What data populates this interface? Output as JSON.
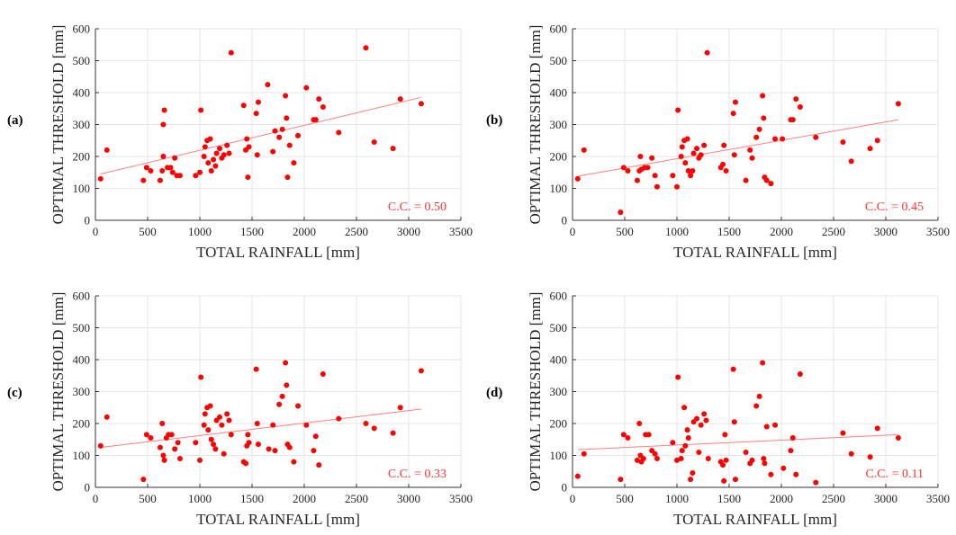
{
  "colors": {
    "marker": "#ff0000",
    "fit_line": "#ff8080",
    "annotation": "#ff3333",
    "grid": "#e6e6e6",
    "axis": "#333333",
    "text": "#262626"
  },
  "chart_data": [
    {
      "type": "scatter",
      "panel_label": "(a)",
      "xlabel": "TOTAL RAINFALL [mm]",
      "ylabel": "OPTIMAL THRESHOLD [mm]",
      "xlim": [
        0,
        3500
      ],
      "ylim": [
        0,
        600
      ],
      "xticks": [
        0,
        500,
        1000,
        1500,
        2000,
        2500,
        3000,
        3500
      ],
      "yticks": [
        0,
        100,
        200,
        300,
        400,
        500,
        600
      ],
      "grid": true,
      "annotation": "C.C. = 0.50",
      "trend_line": {
        "x": [
          50,
          3120
        ],
        "y": [
          145,
          385
        ]
      },
      "points": [
        [
          50,
          130
        ],
        [
          110,
          220
        ],
        [
          460,
          125
        ],
        [
          490,
          165
        ],
        [
          530,
          155
        ],
        [
          620,
          125
        ],
        [
          640,
          155
        ],
        [
          650,
          300
        ],
        [
          650,
          200
        ],
        [
          660,
          345
        ],
        [
          690,
          165
        ],
        [
          720,
          165
        ],
        [
          740,
          150
        ],
        [
          760,
          195
        ],
        [
          780,
          140
        ],
        [
          810,
          140
        ],
        [
          960,
          140
        ],
        [
          1000,
          150
        ],
        [
          1010,
          345
        ],
        [
          1040,
          200
        ],
        [
          1050,
          230
        ],
        [
          1070,
          250
        ],
        [
          1080,
          180
        ],
        [
          1100,
          255
        ],
        [
          1110,
          155
        ],
        [
          1130,
          190
        ],
        [
          1150,
          170
        ],
        [
          1160,
          210
        ],
        [
          1190,
          225
        ],
        [
          1210,
          195
        ],
        [
          1230,
          205
        ],
        [
          1260,
          235
        ],
        [
          1280,
          210
        ],
        [
          1300,
          525
        ],
        [
          1420,
          360
        ],
        [
          1440,
          220
        ],
        [
          1450,
          255
        ],
        [
          1460,
          135
        ],
        [
          1470,
          230
        ],
        [
          1540,
          335
        ],
        [
          1550,
          205
        ],
        [
          1560,
          370
        ],
        [
          1650,
          425
        ],
        [
          1700,
          215
        ],
        [
          1720,
          280
        ],
        [
          1760,
          260
        ],
        [
          1790,
          285
        ],
        [
          1820,
          390
        ],
        [
          1830,
          320
        ],
        [
          1840,
          135
        ],
        [
          1860,
          235
        ],
        [
          1900,
          180
        ],
        [
          1940,
          265
        ],
        [
          2020,
          415
        ],
        [
          2090,
          315
        ],
        [
          2110,
          315
        ],
        [
          2140,
          380
        ],
        [
          2180,
          355
        ],
        [
          2330,
          275
        ],
        [
          2590,
          540
        ],
        [
          2670,
          245
        ],
        [
          2850,
          225
        ],
        [
          2920,
          380
        ],
        [
          3120,
          365
        ]
      ]
    },
    {
      "type": "scatter",
      "panel_label": "(b)",
      "xlabel": "TOTAL RAINFALL [mm]",
      "ylabel": "OPTIMAL THRESHOLD [mm]",
      "xlim": [
        0,
        3500
      ],
      "ylim": [
        0,
        600
      ],
      "xticks": [
        0,
        500,
        1000,
        1500,
        2000,
        2500,
        3000,
        3500
      ],
      "yticks": [
        0,
        100,
        200,
        300,
        400,
        500,
        600
      ],
      "grid": true,
      "annotation": "C.C. = 0.45",
      "trend_line": {
        "x": [
          50,
          3120
        ],
        "y": [
          138,
          315
        ]
      },
      "points": [
        [
          50,
          130
        ],
        [
          110,
          220
        ],
        [
          460,
          25
        ],
        [
          490,
          165
        ],
        [
          530,
          155
        ],
        [
          620,
          125
        ],
        [
          640,
          155
        ],
        [
          650,
          200
        ],
        [
          660,
          160
        ],
        [
          690,
          165
        ],
        [
          720,
          165
        ],
        [
          760,
          195
        ],
        [
          790,
          140
        ],
        [
          810,
          105
        ],
        [
          960,
          140
        ],
        [
          1000,
          105
        ],
        [
          1010,
          345
        ],
        [
          1040,
          200
        ],
        [
          1050,
          230
        ],
        [
          1070,
          250
        ],
        [
          1080,
          180
        ],
        [
          1100,
          255
        ],
        [
          1110,
          155
        ],
        [
          1130,
          140
        ],
        [
          1150,
          155
        ],
        [
          1160,
          210
        ],
        [
          1190,
          225
        ],
        [
          1210,
          195
        ],
        [
          1230,
          205
        ],
        [
          1260,
          235
        ],
        [
          1290,
          525
        ],
        [
          1420,
          165
        ],
        [
          1440,
          175
        ],
        [
          1450,
          235
        ],
        [
          1470,
          155
        ],
        [
          1540,
          335
        ],
        [
          1550,
          205
        ],
        [
          1560,
          370
        ],
        [
          1660,
          125
        ],
        [
          1700,
          220
        ],
        [
          1720,
          195
        ],
        [
          1760,
          260
        ],
        [
          1790,
          285
        ],
        [
          1820,
          390
        ],
        [
          1830,
          320
        ],
        [
          1840,
          135
        ],
        [
          1860,
          125
        ],
        [
          1900,
          115
        ],
        [
          1940,
          255
        ],
        [
          2010,
          255
        ],
        [
          2090,
          315
        ],
        [
          2110,
          315
        ],
        [
          2140,
          380
        ],
        [
          2180,
          355
        ],
        [
          2330,
          260
        ],
        [
          2590,
          245
        ],
        [
          2670,
          185
        ],
        [
          2850,
          225
        ],
        [
          2920,
          250
        ],
        [
          3120,
          365
        ]
      ]
    },
    {
      "type": "scatter",
      "panel_label": "(c)",
      "xlabel": "TOTAL RAINFALL [mm]",
      "ylabel": "OPTIMAL THRESHOLD [mm]",
      "xlim": [
        0,
        3500
      ],
      "ylim": [
        0,
        600
      ],
      "xticks": [
        0,
        500,
        1000,
        1500,
        2000,
        2500,
        3000,
        3500
      ],
      "yticks": [
        0,
        100,
        200,
        300,
        400,
        500,
        600
      ],
      "grid": true,
      "annotation": "C.C. = 0.33",
      "trend_line": {
        "x": [
          50,
          3120
        ],
        "y": [
          125,
          245
        ]
      },
      "points": [
        [
          50,
          130
        ],
        [
          110,
          220
        ],
        [
          460,
          25
        ],
        [
          490,
          165
        ],
        [
          530,
          155
        ],
        [
          620,
          125
        ],
        [
          640,
          200
        ],
        [
          650,
          100
        ],
        [
          660,
          85
        ],
        [
          680,
          155
        ],
        [
          700,
          165
        ],
        [
          730,
          165
        ],
        [
          760,
          120
        ],
        [
          790,
          140
        ],
        [
          810,
          90
        ],
        [
          960,
          140
        ],
        [
          1000,
          85
        ],
        [
          1010,
          345
        ],
        [
          1040,
          195
        ],
        [
          1050,
          230
        ],
        [
          1070,
          250
        ],
        [
          1080,
          180
        ],
        [
          1100,
          255
        ],
        [
          1110,
          150
        ],
        [
          1130,
          135
        ],
        [
          1150,
          120
        ],
        [
          1160,
          210
        ],
        [
          1190,
          220
        ],
        [
          1210,
          195
        ],
        [
          1230,
          105
        ],
        [
          1260,
          230
        ],
        [
          1280,
          210
        ],
        [
          1300,
          165
        ],
        [
          1420,
          80
        ],
        [
          1440,
          75
        ],
        [
          1450,
          130
        ],
        [
          1460,
          165
        ],
        [
          1470,
          140
        ],
        [
          1540,
          370
        ],
        [
          1550,
          200
        ],
        [
          1560,
          135
        ],
        [
          1660,
          120
        ],
        [
          1700,
          195
        ],
        [
          1720,
          115
        ],
        [
          1760,
          260
        ],
        [
          1790,
          285
        ],
        [
          1820,
          390
        ],
        [
          1830,
          320
        ],
        [
          1840,
          135
        ],
        [
          1860,
          125
        ],
        [
          1900,
          80
        ],
        [
          1940,
          255
        ],
        [
          2020,
          195
        ],
        [
          2090,
          115
        ],
        [
          2110,
          160
        ],
        [
          2140,
          70
        ],
        [
          2180,
          355
        ],
        [
          2330,
          215
        ],
        [
          2590,
          200
        ],
        [
          2670,
          185
        ],
        [
          2850,
          170
        ],
        [
          2920,
          250
        ],
        [
          3120,
          365
        ]
      ]
    },
    {
      "type": "scatter",
      "panel_label": "(d)",
      "xlabel": "TOTAL RAINFALL [mm]",
      "ylabel": "OPTIMAL THRESHOLD [mm]",
      "xlim": [
        0,
        3500
      ],
      "ylim": [
        0,
        600
      ],
      "xticks": [
        0,
        500,
        1000,
        1500,
        2000,
        2500,
        3000,
        3500
      ],
      "yticks": [
        0,
        100,
        200,
        300,
        400,
        500,
        600
      ],
      "grid": true,
      "annotation": "C.C. = 0.11",
      "trend_line": {
        "x": [
          50,
          3120
        ],
        "y": [
          118,
          165
        ]
      },
      "points": [
        [
          50,
          35
        ],
        [
          110,
          105
        ],
        [
          460,
          25
        ],
        [
          490,
          165
        ],
        [
          530,
          155
        ],
        [
          620,
          85
        ],
        [
          640,
          200
        ],
        [
          650,
          100
        ],
        [
          660,
          80
        ],
        [
          680,
          90
        ],
        [
          700,
          165
        ],
        [
          730,
          165
        ],
        [
          760,
          115
        ],
        [
          790,
          105
        ],
        [
          810,
          90
        ],
        [
          960,
          140
        ],
        [
          1000,
          85
        ],
        [
          1010,
          345
        ],
        [
          1040,
          90
        ],
        [
          1050,
          115
        ],
        [
          1070,
          250
        ],
        [
          1080,
          130
        ],
        [
          1100,
          180
        ],
        [
          1110,
          155
        ],
        [
          1130,
          25
        ],
        [
          1150,
          45
        ],
        [
          1160,
          205
        ],
        [
          1190,
          215
        ],
        [
          1210,
          110
        ],
        [
          1230,
          195
        ],
        [
          1260,
          230
        ],
        [
          1280,
          210
        ],
        [
          1300,
          90
        ],
        [
          1420,
          80
        ],
        [
          1440,
          70
        ],
        [
          1450,
          20
        ],
        [
          1460,
          165
        ],
        [
          1470,
          85
        ],
        [
          1540,
          370
        ],
        [
          1550,
          205
        ],
        [
          1560,
          25
        ],
        [
          1660,
          110
        ],
        [
          1700,
          75
        ],
        [
          1720,
          85
        ],
        [
          1760,
          255
        ],
        [
          1790,
          285
        ],
        [
          1820,
          390
        ],
        [
          1830,
          90
        ],
        [
          1840,
          75
        ],
        [
          1860,
          190
        ],
        [
          1900,
          40
        ],
        [
          1940,
          195
        ],
        [
          2020,
          60
        ],
        [
          2090,
          115
        ],
        [
          2110,
          155
        ],
        [
          2140,
          40
        ],
        [
          2180,
          355
        ],
        [
          2330,
          15
        ],
        [
          2590,
          170
        ],
        [
          2670,
          105
        ],
        [
          2850,
          95
        ],
        [
          2920,
          185
        ],
        [
          3120,
          155
        ]
      ]
    }
  ]
}
